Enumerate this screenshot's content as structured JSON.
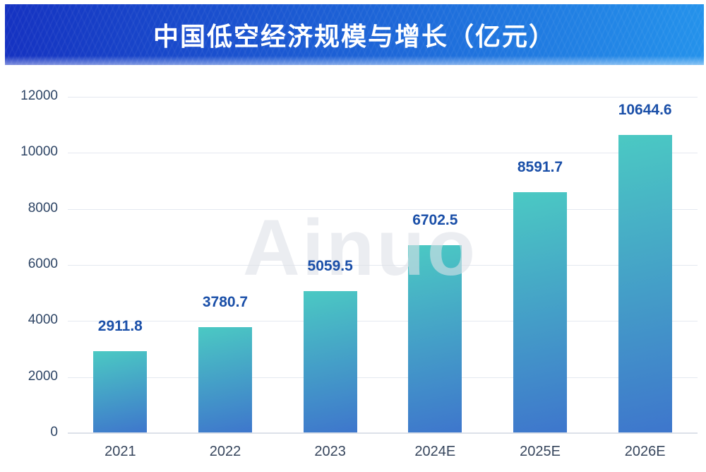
{
  "header": {
    "title": "中国低空经济规模与增长（亿元）"
  },
  "watermark": "Ainuo",
  "chart_data": {
    "type": "bar",
    "title": "中国低空经济规模与增长（亿元）",
    "unit": "亿元",
    "categories": [
      "2021",
      "2022",
      "2023",
      "2024E",
      "2025E",
      "2026E"
    ],
    "values": [
      2911.8,
      3780.7,
      5059.5,
      6702.5,
      8591.7,
      10644.6
    ],
    "xlabel": "",
    "ylabel": "",
    "ylim": [
      0,
      12000
    ],
    "y_ticks": [
      0,
      2000,
      4000,
      6000,
      8000,
      10000,
      12000
    ],
    "grid": true,
    "legend_position": "none",
    "colors": {
      "bar_gradient_top": "#4BC9C3",
      "bar_gradient_bottom": "#3E76CC",
      "value_label": "#1A4FA8",
      "x_tick_label": "#36455C",
      "y_tick_label": "#2E4565",
      "gridline": "#E4E8F0",
      "axis_line": "#DCE1E9",
      "header_gradient_left": "#1532C1",
      "header_gradient_right": "#2492EB",
      "title_text": "#FFFFFF",
      "watermark_text": "rgba(221,225,231,0.6)"
    }
  }
}
